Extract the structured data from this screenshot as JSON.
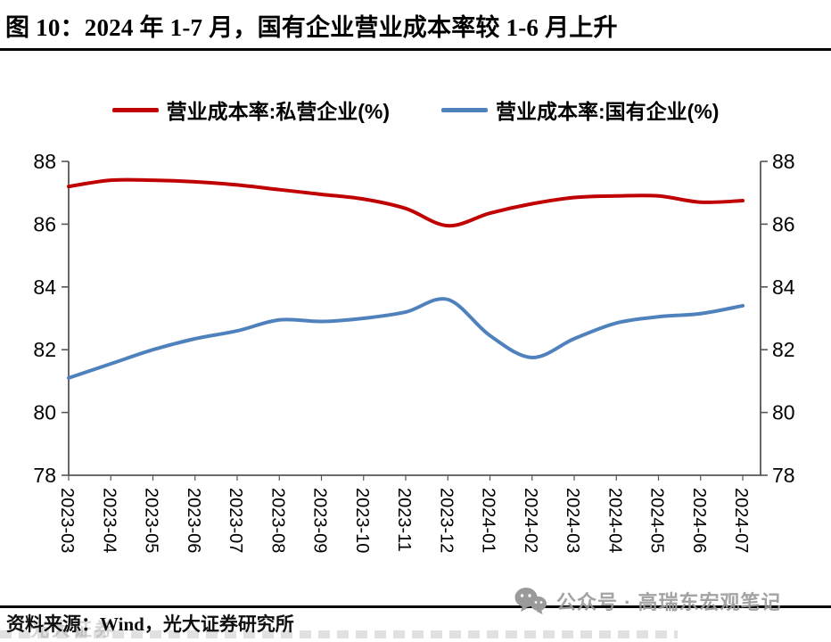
{
  "chart_data": {
    "type": "line",
    "title": "图 10：2024 年 1-7 月，国有企业营业成本率较 1-6 月上升",
    "x": [
      "2023-03",
      "2023-04",
      "2023-05",
      "2023-06",
      "2023-07",
      "2023-08",
      "2023-09",
      "2023-10",
      "2023-11",
      "2023-12",
      "2024-01",
      "2024-02",
      "2024-03",
      "2024-04",
      "2024-05",
      "2024-06",
      "2024-07"
    ],
    "series": [
      {
        "name": "营业成本率:私营企业(%)",
        "color": "#C00000",
        "values": [
          87.2,
          87.4,
          87.4,
          87.35,
          87.25,
          87.1,
          86.95,
          86.8,
          86.5,
          85.95,
          86.35,
          86.65,
          86.85,
          86.9,
          86.9,
          86.7,
          86.75
        ]
      },
      {
        "name": "营业成本率:国有企业(%)",
        "color": "#4F81BD",
        "values": [
          81.1,
          81.55,
          82.0,
          82.35,
          82.6,
          82.95,
          82.9,
          83.0,
          83.2,
          83.6,
          82.45,
          81.75,
          82.35,
          82.85,
          83.05,
          83.15,
          83.4
        ]
      }
    ],
    "ylim": [
      78,
      88
    ],
    "yticks": [
      78,
      80,
      82,
      84,
      86,
      88
    ],
    "grid": false,
    "legend_position": "top",
    "smooth": true,
    "dual_y_axis": true
  },
  "footer": {
    "source": "资料来源：Wind，光大证券研究所",
    "watermark_overlay": "光大证券",
    "social_watermark": "公众号 · 高瑞东宏观笔记"
  }
}
